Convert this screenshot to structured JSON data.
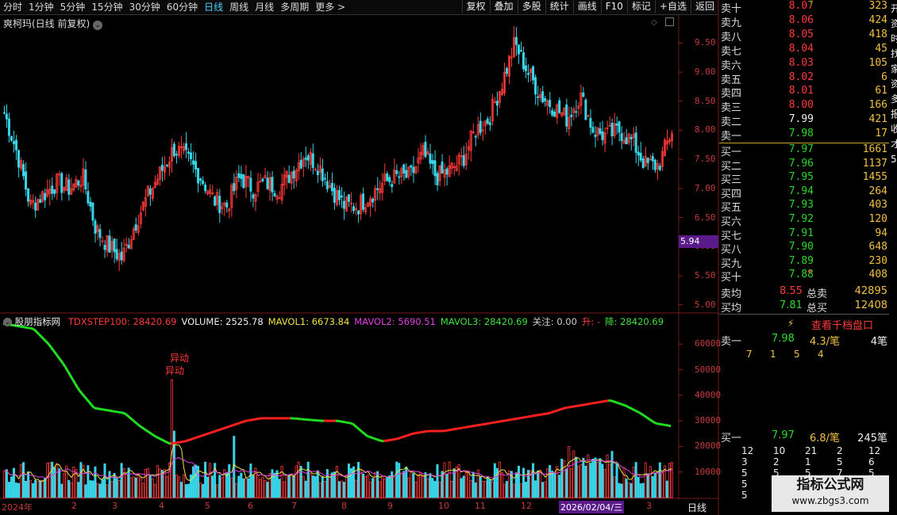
{
  "toolbar": {
    "tabs": [
      "分时",
      "1分钟",
      "5分钟",
      "15分钟",
      "30分钟",
      "60分钟",
      "日线",
      "周线",
      "月线",
      "多周期",
      "更多 >"
    ],
    "active_tab": "日线",
    "right_buttons": [
      "复权",
      "叠加",
      "多股",
      "统计",
      "画线",
      "F10",
      "标记",
      "+自选",
      "返回"
    ]
  },
  "main_chart": {
    "title": "爽柯玛(日线 前复权)",
    "price_tag": "5.94",
    "y_ticks": [
      "9.50",
      "9.00",
      "8.50",
      "8.00",
      "7.50",
      "7.00",
      "6.50",
      "6.00",
      "5.50",
      "5.00"
    ]
  },
  "indicator": {
    "name": "股朋指标网",
    "items": [
      {
        "text": "TDXSTEP100: 28420.69",
        "color": "#ff3a3a"
      },
      {
        "text": "VOLUME: 2525.78",
        "color": "#f0f0f0"
      },
      {
        "text": "MAVOL1: 6673.84",
        "color": "#f0e040"
      },
      {
        "text": "MAVOL2: 5690.51",
        "color": "#e040e0"
      },
      {
        "text": "MAVOL3: 28420.69",
        "color": "#40e040"
      },
      {
        "text": "关注: 0.00",
        "color": "#cfcfcf"
      },
      {
        "text": "升: -",
        "color": "#ff3a3a"
      },
      {
        "text": "降: 28420.69",
        "color": "#40e040"
      }
    ],
    "annotation_1": "异动",
    "annotation_2": "异动",
    "y_ticks": [
      "60000",
      "50000",
      "40000",
      "30000",
      "20000",
      "10000"
    ]
  },
  "x_axis": {
    "labels": [
      "2024年",
      "2",
      "3",
      "4",
      "5",
      "6",
      "7",
      "8",
      "9",
      "10",
      "11",
      "12",
      "2026/02/04/三",
      "3"
    ],
    "period_label": "日线"
  },
  "orderbook": {
    "sells": [
      {
        "label": "卖十",
        "price": "8.07",
        "vol": "323",
        "mark": "↑"
      },
      {
        "label": "卖九",
        "price": "8.06",
        "vol": "424"
      },
      {
        "label": "卖八",
        "price": "8.05",
        "vol": "418"
      },
      {
        "label": "卖七",
        "price": "8.04",
        "vol": "45"
      },
      {
        "label": "卖六",
        "price": "8.03",
        "vol": "105"
      },
      {
        "label": "卖五",
        "price": "8.02",
        "vol": "6"
      },
      {
        "label": "卖四",
        "price": "8.01",
        "vol": "61"
      },
      {
        "label": "卖三",
        "price": "8.00",
        "vol": "166"
      },
      {
        "label": "卖二",
        "price": "7.99",
        "vol": "421"
      },
      {
        "label": "卖一",
        "price": "7.98",
        "vol": "17"
      }
    ],
    "buys": [
      {
        "label": "买一",
        "price": "7.97",
        "vol": "1661"
      },
      {
        "label": "买二",
        "price": "7.96",
        "vol": "1137"
      },
      {
        "label": "买三",
        "price": "7.95",
        "vol": "1455"
      },
      {
        "label": "买四",
        "price": "7.94",
        "vol": "264"
      },
      {
        "label": "买五",
        "price": "7.93",
        "vol": "403"
      },
      {
        "label": "买六",
        "price": "7.92",
        "vol": "120"
      },
      {
        "label": "买七",
        "price": "7.91",
        "vol": "94"
      },
      {
        "label": "买八",
        "price": "7.90",
        "vol": "648"
      },
      {
        "label": "买九",
        "price": "7.89",
        "vol": "230"
      },
      {
        "label": "买十",
        "price": "7.88",
        "vol": "408",
        "mark": "▾"
      }
    ],
    "avg_sell_label": "卖均",
    "avg_sell": "8.55",
    "total_sell_label": "总卖",
    "total_sell": "42895",
    "avg_buy_label": "买均",
    "avg_buy": "7.81",
    "total_buy_label": "总买",
    "total_buy": "12408",
    "view_button": "查看千档盘口",
    "sell1_label": "卖一",
    "sell1_price": "7.98",
    "sell1_per": "4.3/笔",
    "sell1_count": "4笔",
    "sell1_queue": [
      "7",
      "1",
      "5",
      "4"
    ],
    "buy1_label": "买一",
    "buy1_price": "7.97",
    "buy1_per": "6.8/笔",
    "buy1_count": "245笔",
    "buy1_queue": [
      [
        "12",
        "10",
        "21",
        "2",
        "12"
      ],
      [
        "3",
        "2",
        "1",
        "5",
        "6"
      ],
      [
        "5",
        "5",
        "5",
        "7",
        "5"
      ],
      [
        "5"
      ],
      [
        "5"
      ]
    ]
  },
  "watermark": {
    "line1": "指标公式网",
    "line2": "www.zbgs3.com"
  },
  "side_text": "开资时找家资多报收才5",
  "colors": {
    "up": "#ff3a3a",
    "down": "#37d4e6",
    "ma_up": "#ff2020",
    "ma_down": "#20e020",
    "accent": "#4fd1ff",
    "tag_bg": "#5a1a8a"
  },
  "chart_data": [
    {
      "type": "candlestick",
      "title": "爽柯玛(日线 前复权)",
      "ylim": [
        4.9,
        9.9
      ],
      "x": [
        "2024年",
        "2",
        "3",
        "4",
        "5",
        "6",
        "7",
        "8",
        "9",
        "10",
        "11",
        "12",
        "2026/02/04/三",
        "3"
      ],
      "close_path": [
        8.3,
        7.6,
        6.7,
        6.9,
        7.1,
        7.0,
        7.2,
        6.3,
        6.0,
        5.8,
        6.4,
        6.9,
        7.3,
        7.7,
        7.5,
        7.2,
        6.8,
        6.7,
        7.2,
        7.0,
        7.1,
        7.0,
        7.3,
        7.6,
        7.4,
        7.0,
        6.7,
        6.7,
        6.9,
        7.1,
        7.2,
        7.2,
        7.6,
        7.2,
        7.3,
        7.5,
        8.0,
        8.2,
        8.8,
        9.5,
        9.0,
        8.6,
        8.4,
        8.2,
        8.6,
        8.0,
        7.9,
        8.0,
        7.8,
        7.4,
        7.4,
        8.0
      ],
      "price_tag": 5.94
    },
    {
      "type": "bar",
      "title": "股朋指标网",
      "ylim": [
        0,
        70000
      ],
      "series": [
        {
          "name": "TDXSTEP100",
          "current": 28420.69
        },
        {
          "name": "VOLUME",
          "current": 2525.78
        },
        {
          "name": "MAVOL1",
          "current": 6673.84
        },
        {
          "name": "MAVOL2",
          "current": 5690.51
        },
        {
          "name": "MAVOL3",
          "current": 28420.69
        }
      ],
      "step_line": [
        68000,
        67000,
        66000,
        60000,
        52000,
        42000,
        35000,
        34000,
        33000,
        28000,
        24000,
        21000,
        22000,
        24000,
        26000,
        28000,
        30000,
        31000,
        31000,
        31000,
        30500,
        30000,
        30000,
        29000,
        24000,
        22000,
        23000,
        25000,
        26000,
        26000,
        27000,
        28000,
        29000,
        30000,
        31000,
        32000,
        33000,
        35000,
        36000,
        37000,
        38000,
        36000,
        33000,
        29000,
        28000
      ]
    }
  ]
}
